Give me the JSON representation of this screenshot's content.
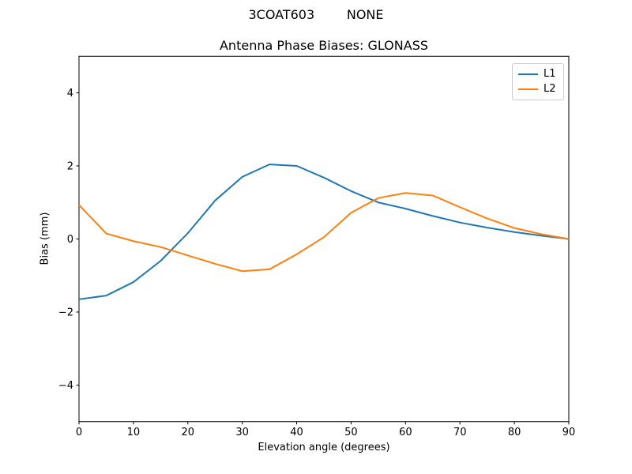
{
  "figure": {
    "suptitle": "3COAT603        NONE",
    "background": "#ffffff"
  },
  "chart_data": {
    "type": "line",
    "title": "Antenna Phase Biases: GLONASS",
    "xlabel": "Elevation angle (degrees)",
    "ylabel": "Bias (mm)",
    "xlim": [
      0,
      90
    ],
    "ylim": [
      -5,
      5
    ],
    "xticks": [
      0,
      10,
      20,
      30,
      40,
      50,
      60,
      70,
      80,
      90
    ],
    "xtick_labels": [
      "0",
      "10",
      "20",
      "30",
      "40",
      "50",
      "60",
      "70",
      "80",
      "90"
    ],
    "yticks": [
      -4,
      -2,
      0,
      2,
      4
    ],
    "ytick_labels": [
      "−4",
      "−2",
      "0",
      "2",
      "4"
    ],
    "grid": false,
    "axis_color": "#000000",
    "legend": {
      "position": "upper right",
      "border_color": "#cccccc"
    },
    "x": [
      0,
      5,
      10,
      15,
      20,
      25,
      30,
      35,
      40,
      45,
      50,
      55,
      60,
      65,
      70,
      75,
      80,
      85,
      90
    ],
    "series": [
      {
        "name": "L1",
        "color": "#1f77b4",
        "values": [
          -1.65,
          -1.55,
          -1.18,
          -0.6,
          0.16,
          1.05,
          1.7,
          2.04,
          2.0,
          1.68,
          1.31,
          1.0,
          0.83,
          0.63,
          0.45,
          0.31,
          0.19,
          0.09,
          0.0
        ]
      },
      {
        "name": "L2",
        "color": "#ff7f0e",
        "values": [
          0.93,
          0.15,
          -0.06,
          -0.22,
          -0.45,
          -0.68,
          -0.88,
          -0.83,
          -0.42,
          0.05,
          0.72,
          1.12,
          1.26,
          1.19,
          0.87,
          0.56,
          0.3,
          0.13,
          0.0
        ]
      }
    ]
  }
}
